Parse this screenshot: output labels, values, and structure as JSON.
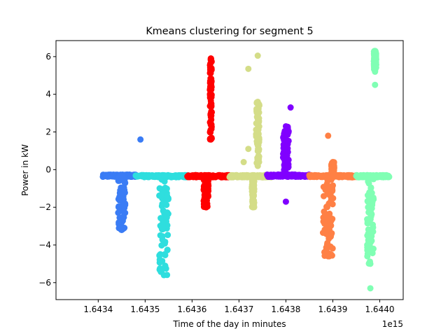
{
  "chart_data": {
    "type": "scatter",
    "title": "Kmeans clustering for segment 5",
    "xlabel": "Time of the day in minutes",
    "ylabel": "Power in kW",
    "x_offset_label": "1e15",
    "xlim": [
      1.64331,
      1.64405
    ],
    "ylim": [
      -6.9,
      6.85
    ],
    "x_ticks": [
      1.6434,
      1.6435,
      1.6436,
      1.6437,
      1.6438,
      1.6439,
      1.644
    ],
    "x_tick_labels": [
      "1.6434",
      "1.6435",
      "1.6436",
      "1.6437",
      "1.6438",
      "1.6439",
      "1.6440"
    ],
    "y_ticks": [
      -6,
      -4,
      -2,
      0,
      2,
      4,
      6
    ],
    "y_tick_labels": [
      "−6",
      "−4",
      "−2",
      "0",
      "2",
      "4",
      "6"
    ],
    "grid": false,
    "legend": "none",
    "series": [
      {
        "color": "#3a7cf5",
        "x_range": [
          1.64341,
          1.64348
        ],
        "base": -0.32,
        "outliers": [
          [
            1.64349,
            1.6
          ]
        ],
        "spikes": [
          {
            "x_center": 1.64345,
            "x_width": 1.5e-05,
            "y_min": -3.2,
            "y_max": -0.3
          }
        ]
      },
      {
        "color": "#2fdede",
        "x_range": [
          1.64348,
          1.64359
        ],
        "base": -0.35,
        "outliers": [],
        "spikes": [
          {
            "x_center": 1.64354,
            "x_width": 2e-05,
            "y_min": -5.6,
            "y_max": -0.3
          }
        ]
      },
      {
        "color": "#ff0000",
        "x_range": [
          1.64359,
          1.64368
        ],
        "base": -0.35,
        "outliers": [],
        "spikes": [
          {
            "x_center": 1.64364,
            "x_width": 4e-06,
            "y_min": 1.6,
            "y_max": 5.9
          },
          {
            "x_center": 1.64363,
            "x_width": 1e-05,
            "y_min": -2.0,
            "y_max": -0.3
          }
        ]
      },
      {
        "color": "#d4dd88",
        "x_range": [
          1.64368,
          1.64377
        ],
        "base": -0.35,
        "outliers": [
          [
            1.64372,
            5.35
          ],
          [
            1.64374,
            6.05
          ],
          [
            1.64372,
            1.1
          ],
          [
            1.64371,
            0.4
          ]
        ],
        "spikes": [
          {
            "x_center": 1.64374,
            "x_width": 7e-06,
            "y_min": 0.2,
            "y_max": 3.6
          },
          {
            "x_center": 1.64373,
            "x_width": 5e-06,
            "y_min": -2.0,
            "y_max": -0.3
          }
        ]
      },
      {
        "color": "#8000ff",
        "x_range": [
          1.64376,
          1.64385
        ],
        "base": -0.32,
        "outliers": [
          [
            1.64381,
            3.3
          ],
          [
            1.6438,
            -1.7
          ]
        ],
        "spikes": [
          {
            "x_center": 1.6438,
            "x_width": 1.2e-05,
            "y_min": -0.3,
            "y_max": 2.3
          }
        ]
      },
      {
        "color": "#ff8045",
        "x_range": [
          1.64385,
          1.64395
        ],
        "base": -0.35,
        "outliers": [
          [
            1.64389,
            1.8
          ]
        ],
        "spikes": [
          {
            "x_center": 1.64389,
            "x_width": 2.2e-05,
            "y_min": -4.6,
            "y_max": -0.3
          },
          {
            "x_center": 1.6439,
            "x_width": 6e-06,
            "y_min": -0.3,
            "y_max": 0.4
          }
        ]
      },
      {
        "color": "#80ffb4",
        "x_range": [
          1.64395,
          1.64402
        ],
        "base": -0.35,
        "outliers": [
          [
            1.64399,
            4.5
          ],
          [
            1.64398,
            -6.3
          ]
        ],
        "spikes": [
          {
            "x_center": 1.64398,
            "x_width": 1.4e-05,
            "y_min": -5.0,
            "y_max": -0.3
          },
          {
            "x_center": 1.64399,
            "x_width": 5e-06,
            "y_min": 5.2,
            "y_max": 6.3
          }
        ]
      }
    ]
  }
}
